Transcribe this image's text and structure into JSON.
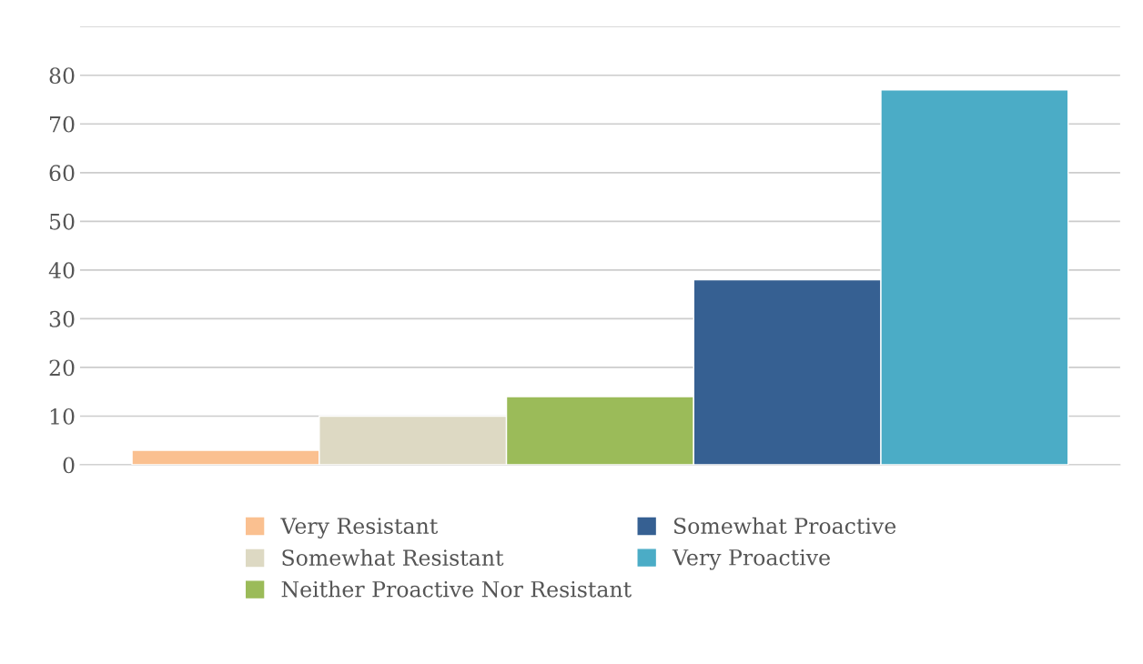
{
  "chart_data": {
    "type": "bar",
    "categories": [
      null
    ],
    "series": [
      {
        "name": "Very Resistant",
        "color": "#fac090",
        "values": [
          3
        ]
      },
      {
        "name": "Somewhat Resistant",
        "color": "#ddd9c3",
        "values": [
          10
        ]
      },
      {
        "name": "Neither Proactive Nor Resistant",
        "color": "#9bbb59",
        "values": [
          14
        ]
      },
      {
        "name": "Somewhat Proactive",
        "color": "#366092",
        "values": [
          38
        ]
      },
      {
        "name": "Very Proactive",
        "color": "#4bacc6",
        "values": [
          77
        ]
      }
    ],
    "ylim": [
      0,
      90
    ],
    "yticks": [
      0,
      10,
      20,
      30,
      40,
      50,
      60,
      70,
      80,
      {
        "value": 90,
        "label": null
      }
    ],
    "grid": "y",
    "legend": "bottom"
  }
}
